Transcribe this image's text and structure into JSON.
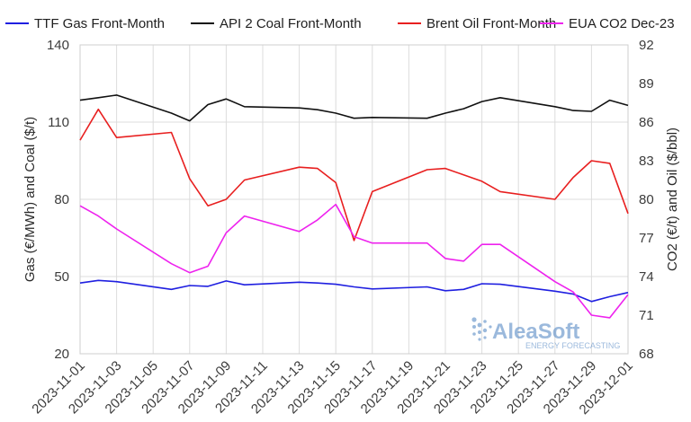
{
  "chart_data": {
    "type": "line",
    "title": "",
    "x": [
      "2023-11-01",
      "2023-11-02",
      "2023-11-03",
      "2023-11-06",
      "2023-11-07",
      "2023-11-08",
      "2023-11-09",
      "2023-11-10",
      "2023-11-13",
      "2023-11-14",
      "2023-11-15",
      "2023-11-16",
      "2023-11-17",
      "2023-11-20",
      "2023-11-21",
      "2023-11-22",
      "2023-11-23",
      "2023-11-24",
      "2023-11-27",
      "2023-11-28",
      "2023-11-29",
      "2023-11-30",
      "2023-12-01"
    ],
    "xticks": [
      "2023-11-01",
      "2023-11-03",
      "2023-11-05",
      "2023-11-07",
      "2023-11-09",
      "2023-11-11",
      "2023-11-13",
      "2023-11-15",
      "2023-11-17",
      "2023-11-19",
      "2023-11-21",
      "2023-11-23",
      "2023-11-25",
      "2023-11-27",
      "2023-11-29",
      "2023-12-01"
    ],
    "ylabel_left": "Gas (€/MWh) and Coal ($/t)",
    "ylabel_right": "CO2 (€/t) and Oil ($/bbl)",
    "ylim_left": [
      20,
      140
    ],
    "yticks_left": [
      20,
      50,
      80,
      110,
      140
    ],
    "ylim_right": [
      68,
      92
    ],
    "yticks_right": [
      68,
      71,
      74,
      77,
      80,
      83,
      86,
      89,
      92
    ],
    "grid": true,
    "legend_position": "top",
    "series": [
      {
        "name": "TTF Gas Front-Month",
        "axis": "left",
        "color": "#1f1fe0",
        "values": [
          47.5,
          48.5,
          48.0,
          45.0,
          46.5,
          46.2,
          48.3,
          46.8,
          47.8,
          47.5,
          47.0,
          46.0,
          45.2,
          46.0,
          44.5,
          45.0,
          47.2,
          47.0,
          44.3,
          43.2,
          40.3,
          42.2,
          43.8
        ]
      },
      {
        "name": "API 2 Coal Front-Month",
        "axis": "left",
        "color": "#111111",
        "values": [
          118.5,
          119.5,
          120.5,
          113.5,
          110.5,
          116.8,
          119.0,
          116.0,
          115.5,
          114.8,
          113.5,
          111.5,
          111.8,
          111.5,
          113.5,
          115.2,
          118.0,
          119.5,
          116.0,
          114.5,
          114.2,
          118.5,
          116.5
        ]
      },
      {
        "name": "Brent Oil Front-Month",
        "axis": "right",
        "color": "#e81f1f",
        "values": [
          84.6,
          87.0,
          84.8,
          85.2,
          81.6,
          79.5,
          80.0,
          81.5,
          82.5,
          82.4,
          81.3,
          76.8,
          80.6,
          82.3,
          82.4,
          81.9,
          81.4,
          80.6,
          80.0,
          81.7,
          83.0,
          82.8,
          78.9
        ]
      },
      {
        "name": "EUA CO2 Dec-23",
        "axis": "right",
        "color": "#ee22ee",
        "values": [
          79.5,
          78.7,
          77.7,
          75.0,
          74.3,
          74.8,
          77.4,
          78.7,
          77.5,
          78.4,
          79.6,
          77.1,
          76.6,
          76.6,
          75.4,
          75.2,
          76.5,
          76.5,
          73.6,
          72.8,
          71.0,
          70.8,
          72.6
        ]
      }
    ]
  },
  "logo": {
    "name": "AleaSoft",
    "tagline": "ENERGY FORECASTING"
  }
}
